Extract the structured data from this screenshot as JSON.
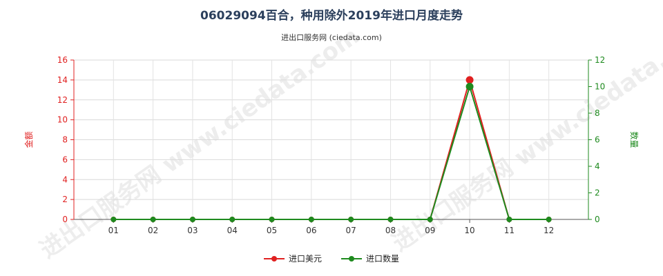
{
  "page": {
    "title": "06029094百合，种用除外2019年进口月度走势",
    "subtitle": "进出口服务网 (ciedata.com)",
    "watermark": "进出口服务网 www.ciedata.com"
  },
  "chart_data": {
    "type": "line",
    "title": "06029094百合，种用除外2019年进口月度走势",
    "subtitle": "进出口服务网 (ciedata.com)",
    "categories": [
      "01",
      "02",
      "03",
      "04",
      "05",
      "06",
      "07",
      "08",
      "09",
      "10",
      "11",
      "12"
    ],
    "y_left": {
      "label": "金额",
      "ylim": [
        0,
        16
      ],
      "ticks": [
        0,
        2,
        4,
        6,
        8,
        10,
        12,
        14,
        16
      ],
      "color": "#e02020"
    },
    "y_right": {
      "label": "数量",
      "ylim": [
        0,
        12
      ],
      "ticks": [
        0,
        2,
        4,
        6,
        8,
        10,
        12
      ],
      "color": "#1e8a1e"
    },
    "series": [
      {
        "name": "进口美元",
        "axis": "left",
        "color": "#e02020",
        "values": [
          0,
          0,
          0,
          0,
          0,
          0,
          0,
          0,
          0,
          14,
          0,
          0
        ]
      },
      {
        "name": "进口数量",
        "axis": "right",
        "color": "#1e8a1e",
        "values": [
          0,
          0,
          0,
          0,
          0,
          0,
          0,
          0,
          0,
          10,
          0,
          0
        ]
      }
    ],
    "grid": true,
    "legend": "bottom-center"
  }
}
